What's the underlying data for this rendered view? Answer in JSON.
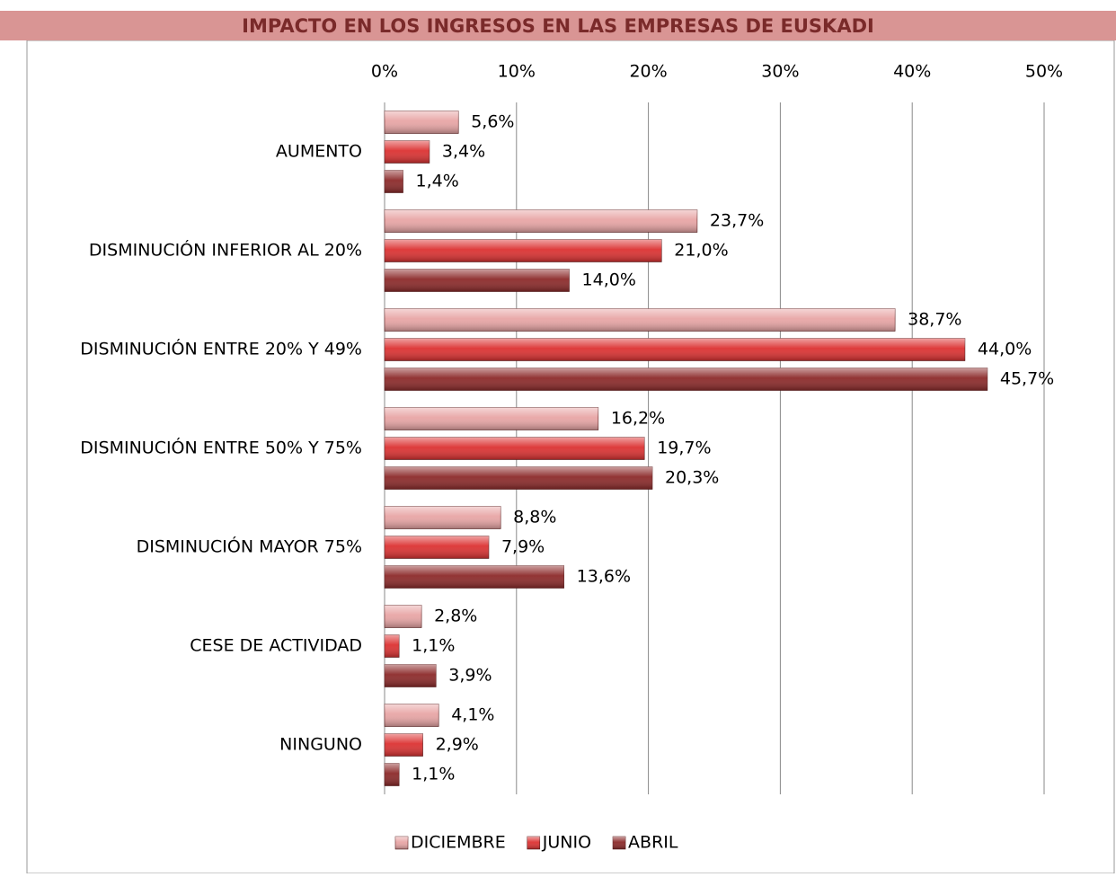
{
  "chart_data": {
    "type": "bar",
    "orientation": "horizontal",
    "title": "IMPACTO EN LOS INGRESOS EN LAS EMPRESAS DE EUSKADI",
    "categories": [
      "AUMENTO",
      "DISMINUCIÓN INFERIOR AL 20%",
      "DISMINUCIÓN ENTRE 20% Y 49%",
      "DISMINUCIÓN ENTRE 50% Y 75%",
      "DISMINUCIÓN MAYOR 75%",
      "CESE DE ACTIVIDAD",
      "NINGUNO"
    ],
    "series": [
      {
        "name": "DICIEMBRE",
        "color": "#e8a5a5",
        "values": [
          5.6,
          23.7,
          38.7,
          16.2,
          8.8,
          2.8,
          4.1
        ],
        "value_labels": [
          "5,6%",
          "23,7%",
          "38,7%",
          "16,2%",
          "8,8%",
          "2,8%",
          "4,1%"
        ]
      },
      {
        "name": "JUNIO",
        "color": "#dc3232",
        "values": [
          3.4,
          21.0,
          44.0,
          19.7,
          7.9,
          1.1,
          2.9
        ],
        "value_labels": [
          "3,4%",
          "21,0%",
          "44,0%",
          "19,7%",
          "7,9%",
          "1,1%",
          "2,9%"
        ]
      },
      {
        "name": "ABRIL",
        "color": "#8c2a2a",
        "values": [
          1.4,
          14.0,
          45.7,
          20.3,
          13.6,
          3.9,
          1.1
        ],
        "value_labels": [
          "1,4%",
          "14,0%",
          "45,7%",
          "20,3%",
          "13,6%",
          "3,9%",
          "1,1%"
        ]
      }
    ],
    "xlim": [
      0,
      50
    ],
    "xticks": [
      {
        "value": 0,
        "label": "0%"
      },
      {
        "value": 10,
        "label": "10%"
      },
      {
        "value": 20,
        "label": "20%"
      },
      {
        "value": 30,
        "label": "30%"
      },
      {
        "value": 40,
        "label": "40%"
      },
      {
        "value": 50,
        "label": "50%"
      }
    ],
    "grid": true,
    "legend": "bottom"
  }
}
